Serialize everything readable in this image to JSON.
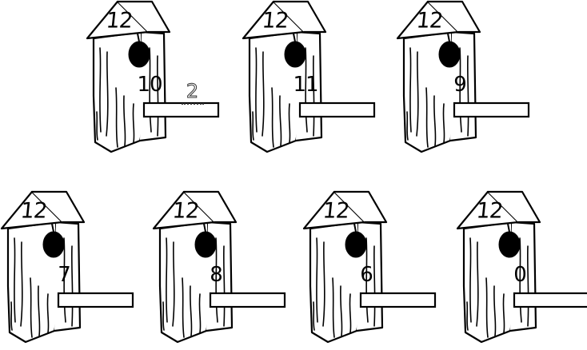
{
  "worksheet": {
    "houses": [
      {
        "total": "12",
        "part": "10",
        "answer": "2"
      },
      {
        "total": "12",
        "part": "11",
        "answer": ""
      },
      {
        "total": "12",
        "part": "9",
        "answer": ""
      },
      {
        "total": "12",
        "part": "7",
        "answer": ""
      },
      {
        "total": "12",
        "part": "8",
        "answer": ""
      },
      {
        "total": "12",
        "part": "6",
        "answer": ""
      },
      {
        "total": "12",
        "part": "0",
        "answer": ""
      }
    ]
  }
}
